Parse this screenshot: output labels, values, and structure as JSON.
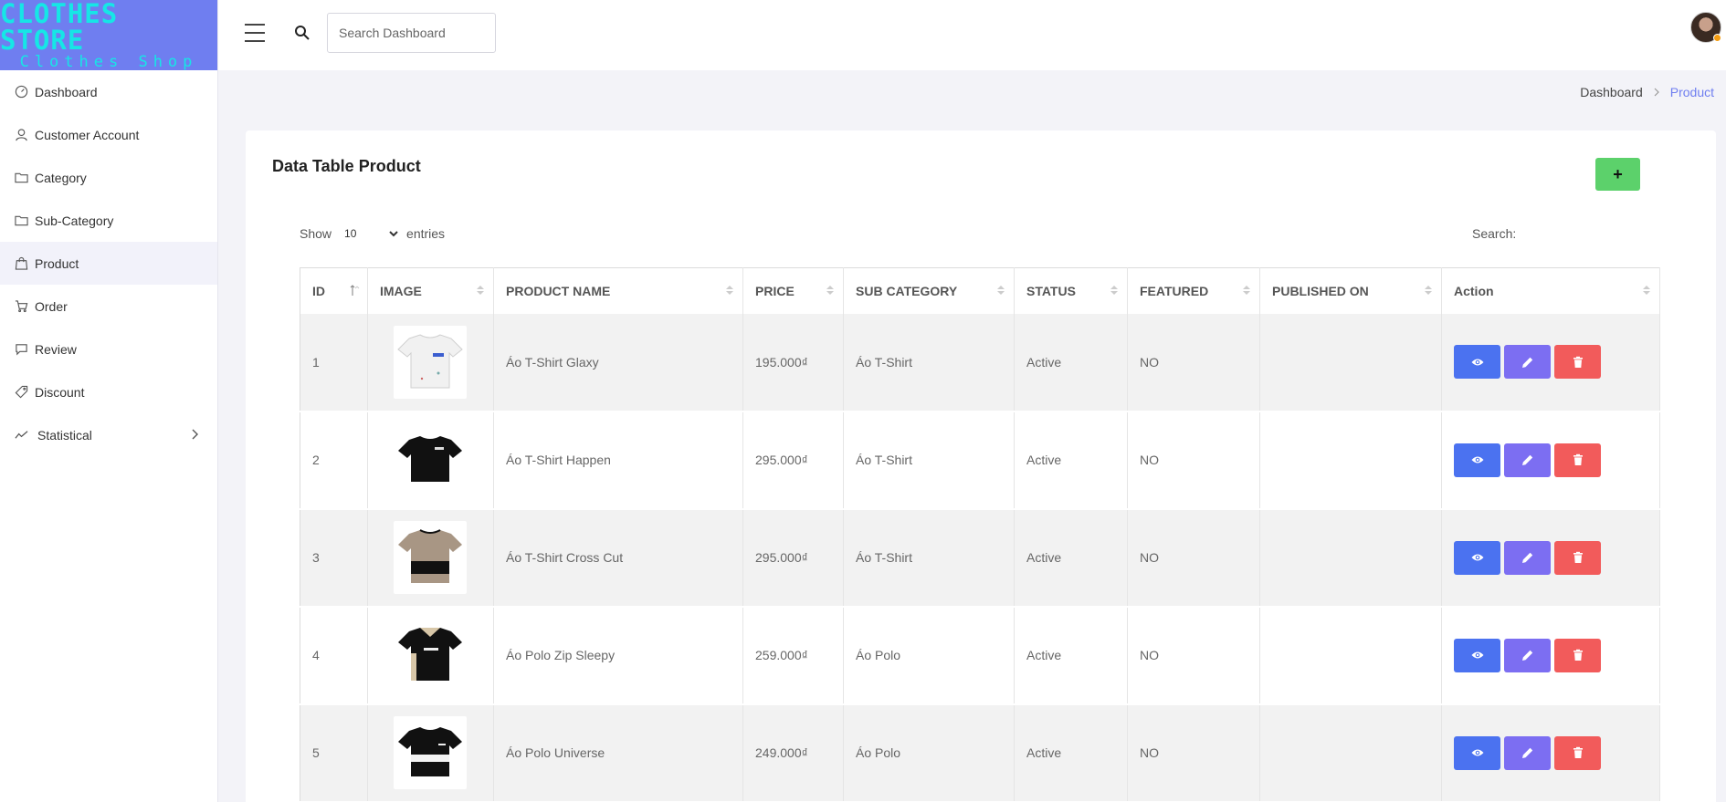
{
  "logo": {
    "line1": "CLOTHES STORE",
    "line2": "Clothes Shop"
  },
  "sidebar": {
    "items": [
      {
        "label": "Dashboard",
        "icon": "gauge-icon"
      },
      {
        "label": "Customer Account",
        "icon": "user-icon"
      },
      {
        "label": "Category",
        "icon": "folder-icon"
      },
      {
        "label": "Sub-Category",
        "icon": "folder-icon"
      },
      {
        "label": "Product",
        "icon": "shopping-bag-icon",
        "active": true
      },
      {
        "label": "Order",
        "icon": "cart-icon"
      },
      {
        "label": "Review",
        "icon": "chat-icon"
      },
      {
        "label": "Discount",
        "icon": "tag-icon"
      },
      {
        "label": "Statistical",
        "icon": "trend-icon"
      }
    ]
  },
  "header": {
    "search_placeholder": "Search Dashboard"
  },
  "breadcrumb": {
    "home": "Dashboard",
    "current": "Product"
  },
  "card": {
    "title": "Data Table Product",
    "add_label": "+",
    "show_label": "Show",
    "entries_value": "10",
    "entries_label": "entries",
    "search_label": "Search:"
  },
  "table": {
    "headers": [
      "ID",
      "IMAGE",
      "PRODUCT NAME",
      "PRICE",
      "SUB CATEGORY",
      "STATUS",
      "FEATURED",
      "PUBLISHED ON",
      "Action"
    ],
    "rows": [
      {
        "id": "1",
        "name": "Áo T-Shirt Glaxy",
        "price": "195.000₫",
        "sub": "Áo T-Shirt",
        "status": "Active",
        "featured": "NO",
        "published": ""
      },
      {
        "id": "2",
        "name": "Áo T-Shirt Happen",
        "price": "295.000₫",
        "sub": "Áo T-Shirt",
        "status": "Active",
        "featured": "NO",
        "published": ""
      },
      {
        "id": "3",
        "name": "Áo T-Shirt Cross Cut",
        "price": "295.000₫",
        "sub": "Áo T-Shirt",
        "status": "Active",
        "featured": "NO",
        "published": ""
      },
      {
        "id": "4",
        "name": "Áo Polo Zip Sleepy",
        "price": "259.000₫",
        "sub": "Áo Polo",
        "status": "Active",
        "featured": "NO",
        "published": ""
      },
      {
        "id": "5",
        "name": "Áo Polo Universe",
        "price": "249.000₫",
        "sub": "Áo Polo",
        "status": "Active",
        "featured": "NO",
        "published": ""
      }
    ]
  },
  "colors": {
    "accent": "#6f7ef0",
    "success": "#5cd16b",
    "view": "#4b72f0",
    "edit": "#7c6ef2",
    "delete": "#f25b5b"
  }
}
